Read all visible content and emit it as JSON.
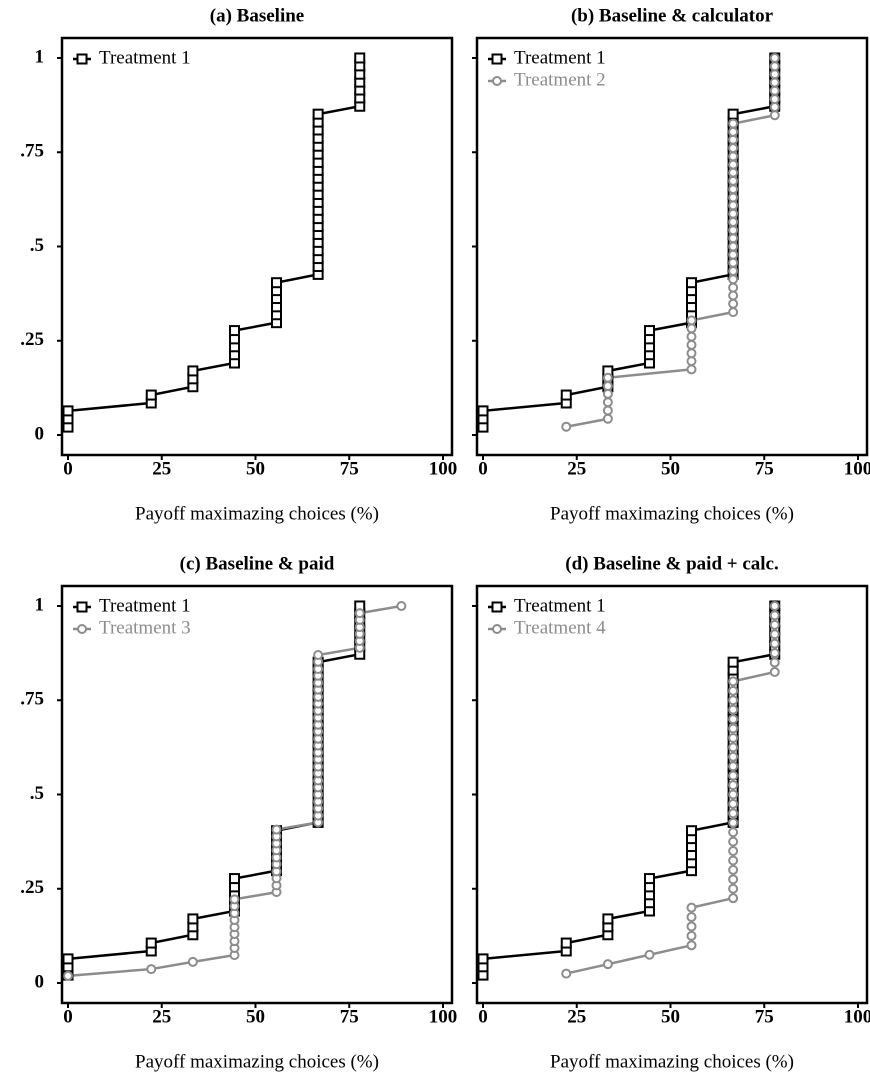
{
  "chart_data": [
    {
      "type": "line",
      "title": "(a) Baseline",
      "x_label": "Payoff maximazing choices (%)",
      "xlim": [
        -1.6,
        102.4
      ],
      "ylim": [
        -0.053,
        1.053
      ],
      "xticks": [
        0,
        25,
        50,
        75,
        100
      ],
      "yticks": [
        0,
        {
          "value": 0.25,
          "label": ".25"
        },
        {
          "value": 0.5,
          "label": ".5"
        },
        {
          "value": 0.75,
          "label": ".75"
        },
        1
      ],
      "show_ytick_labels": true,
      "legend": "upper left",
      "series": [
        {
          "name": "Treatment 1",
          "color": "#000000",
          "marker": "square",
          "x": [
            0,
            0,
            0,
            22.2,
            22.2,
            33.3,
            33.3,
            33.3,
            44.4,
            44.4,
            44.4,
            44.4,
            44.4,
            55.6,
            55.6,
            55.6,
            55.6,
            55.6,
            55.6,
            66.7,
            66.7,
            66.7,
            66.7,
            66.7,
            66.7,
            66.7,
            66.7,
            66.7,
            66.7,
            66.7,
            66.7,
            66.7,
            66.7,
            66.7,
            66.7,
            66.7,
            66.7,
            66.7,
            66.7,
            66.7,
            77.8,
            77.8,
            77.8,
            77.8,
            77.8,
            77.8,
            77.8
          ],
          "values": [
            0.021,
            0.043,
            0.064,
            0.085,
            0.106,
            0.128,
            0.149,
            0.17,
            0.191,
            0.213,
            0.234,
            0.255,
            0.277,
            0.298,
            0.319,
            0.34,
            0.362,
            0.383,
            0.404,
            0.426,
            0.447,
            0.468,
            0.489,
            0.511,
            0.532,
            0.553,
            0.574,
            0.596,
            0.617,
            0.638,
            0.66,
            0.681,
            0.702,
            0.723,
            0.745,
            0.766,
            0.787,
            0.809,
            0.83,
            0.851,
            0.872,
            0.894,
            0.915,
            0.936,
            0.957,
            0.979,
            1
          ]
        }
      ]
    },
    {
      "type": "line",
      "title": "(b) Baseline & calculator",
      "x_label": "Payoff maximazing choices (%)",
      "xlim": [
        -1.6,
        102.4
      ],
      "ylim": [
        -0.053,
        1.053
      ],
      "xticks": [
        0,
        25,
        50,
        75,
        100
      ],
      "yticks": [
        0,
        0.25,
        0.5,
        0.75,
        1
      ],
      "show_ytick_labels": false,
      "legend": "upper left",
      "series": [
        {
          "name": "Treatment 1",
          "color": "#000000",
          "marker": "square",
          "x": [
            0,
            0,
            0,
            22.2,
            22.2,
            33.3,
            33.3,
            33.3,
            44.4,
            44.4,
            44.4,
            44.4,
            44.4,
            55.6,
            55.6,
            55.6,
            55.6,
            55.6,
            55.6,
            66.7,
            66.7,
            66.7,
            66.7,
            66.7,
            66.7,
            66.7,
            66.7,
            66.7,
            66.7,
            66.7,
            66.7,
            66.7,
            66.7,
            66.7,
            66.7,
            66.7,
            66.7,
            66.7,
            66.7,
            66.7,
            77.8,
            77.8,
            77.8,
            77.8,
            77.8,
            77.8,
            77.8
          ],
          "values": [
            0.021,
            0.043,
            0.064,
            0.085,
            0.106,
            0.128,
            0.149,
            0.17,
            0.191,
            0.213,
            0.234,
            0.255,
            0.277,
            0.298,
            0.319,
            0.34,
            0.362,
            0.383,
            0.404,
            0.426,
            0.447,
            0.468,
            0.489,
            0.511,
            0.532,
            0.553,
            0.574,
            0.596,
            0.617,
            0.638,
            0.66,
            0.681,
            0.702,
            0.723,
            0.745,
            0.766,
            0.787,
            0.809,
            0.83,
            0.851,
            0.872,
            0.894,
            0.915,
            0.936,
            0.957,
            0.979,
            1
          ]
        },
        {
          "name": "Treatment 2",
          "color": "#8c8c8c",
          "marker": "circle",
          "x": [
            22.2,
            33.3,
            33.3,
            33.3,
            33.3,
            33.3,
            33.3,
            55.6,
            55.6,
            55.6,
            55.6,
            55.6,
            55.6,
            55.6,
            66.7,
            66.7,
            66.7,
            66.7,
            66.7,
            66.7,
            66.7,
            66.7,
            66.7,
            66.7,
            66.7,
            66.7,
            66.7,
            66.7,
            66.7,
            66.7,
            66.7,
            66.7,
            66.7,
            66.7,
            66.7,
            66.7,
            66.7,
            66.7,
            77.8,
            77.8,
            77.8,
            77.8,
            77.8,
            77.8,
            77.8,
            77.8
          ],
          "values": [
            0.022,
            0.043,
            0.065,
            0.087,
            0.109,
            0.13,
            0.152,
            0.174,
            0.196,
            0.217,
            0.239,
            0.261,
            0.283,
            0.304,
            0.326,
            0.348,
            0.37,
            0.391,
            0.413,
            0.435,
            0.457,
            0.478,
            0.5,
            0.522,
            0.543,
            0.565,
            0.587,
            0.609,
            0.63,
            0.652,
            0.674,
            0.696,
            0.717,
            0.739,
            0.761,
            0.783,
            0.804,
            0.826,
            0.848,
            0.87,
            0.891,
            0.913,
            0.935,
            0.957,
            0.978,
            1
          ]
        }
      ]
    },
    {
      "type": "line",
      "title": "(c) Baseline & paid",
      "x_label": "Payoff maximazing choices (%)",
      "xlim": [
        -1.6,
        102.4
      ],
      "ylim": [
        -0.053,
        1.053
      ],
      "xticks": [
        0,
        25,
        50,
        75,
        100
      ],
      "yticks": [
        0,
        {
          "value": 0.25,
          "label": ".25"
        },
        {
          "value": 0.5,
          "label": ".5"
        },
        {
          "value": 0.75,
          "label": ".75"
        },
        1
      ],
      "show_ytick_labels": true,
      "legend": "upper left",
      "series": [
        {
          "name": "Treatment 1",
          "color": "#000000",
          "marker": "square",
          "x": [
            0,
            0,
            0,
            22.2,
            22.2,
            33.3,
            33.3,
            33.3,
            44.4,
            44.4,
            44.4,
            44.4,
            44.4,
            55.6,
            55.6,
            55.6,
            55.6,
            55.6,
            55.6,
            66.7,
            66.7,
            66.7,
            66.7,
            66.7,
            66.7,
            66.7,
            66.7,
            66.7,
            66.7,
            66.7,
            66.7,
            66.7,
            66.7,
            66.7,
            66.7,
            66.7,
            66.7,
            66.7,
            66.7,
            66.7,
            77.8,
            77.8,
            77.8,
            77.8,
            77.8,
            77.8,
            77.8
          ],
          "values": [
            0.021,
            0.043,
            0.064,
            0.085,
            0.106,
            0.128,
            0.149,
            0.17,
            0.191,
            0.213,
            0.234,
            0.255,
            0.277,
            0.298,
            0.319,
            0.34,
            0.362,
            0.383,
            0.404,
            0.426,
            0.447,
            0.468,
            0.489,
            0.511,
            0.532,
            0.553,
            0.574,
            0.596,
            0.617,
            0.638,
            0.66,
            0.681,
            0.702,
            0.723,
            0.745,
            0.766,
            0.787,
            0.809,
            0.83,
            0.851,
            0.872,
            0.894,
            0.915,
            0.936,
            0.957,
            0.979,
            1
          ]
        },
        {
          "name": "Treatment 3",
          "color": "#8c8c8c",
          "marker": "circle",
          "x": [
            0,
            22.2,
            33.3,
            44.4,
            44.4,
            44.4,
            44.4,
            44.4,
            44.4,
            44.4,
            44.4,
            44.4,
            55.6,
            55.6,
            55.6,
            55.6,
            55.6,
            55.6,
            55.6,
            55.6,
            55.6,
            55.6,
            66.7,
            66.7,
            66.7,
            66.7,
            66.7,
            66.7,
            66.7,
            66.7,
            66.7,
            66.7,
            66.7,
            66.7,
            66.7,
            66.7,
            66.7,
            66.7,
            66.7,
            66.7,
            66.7,
            66.7,
            66.7,
            66.7,
            66.7,
            66.7,
            66.7,
            77.8,
            77.8,
            77.8,
            77.8,
            77.8,
            77.8,
            88.9
          ],
          "values": [
            0.019,
            0.037,
            0.056,
            0.074,
            0.093,
            0.111,
            0.13,
            0.148,
            0.167,
            0.185,
            0.204,
            0.222,
            0.241,
            0.259,
            0.278,
            0.296,
            0.315,
            0.333,
            0.352,
            0.37,
            0.389,
            0.407,
            0.426,
            0.444,
            0.463,
            0.481,
            0.5,
            0.519,
            0.537,
            0.556,
            0.574,
            0.593,
            0.611,
            0.63,
            0.648,
            0.667,
            0.685,
            0.704,
            0.722,
            0.741,
            0.759,
            0.778,
            0.796,
            0.815,
            0.833,
            0.852,
            0.87,
            0.889,
            0.907,
            0.926,
            0.944,
            0.963,
            0.981,
            1
          ]
        }
      ]
    },
    {
      "type": "line",
      "title": "(d) Baseline & paid + calc.",
      "x_label": "Payoff maximazing choices (%)",
      "xlim": [
        -1.6,
        102.4
      ],
      "ylim": [
        -0.053,
        1.053
      ],
      "xticks": [
        0,
        25,
        50,
        75,
        100
      ],
      "yticks": [
        0,
        0.25,
        0.5,
        0.75,
        1
      ],
      "show_ytick_labels": false,
      "legend": "upper left",
      "series": [
        {
          "name": "Treatment 1",
          "color": "#000000",
          "marker": "square",
          "x": [
            0,
            0,
            0,
            22.2,
            22.2,
            33.3,
            33.3,
            33.3,
            44.4,
            44.4,
            44.4,
            44.4,
            44.4,
            55.6,
            55.6,
            55.6,
            55.6,
            55.6,
            55.6,
            66.7,
            66.7,
            66.7,
            66.7,
            66.7,
            66.7,
            66.7,
            66.7,
            66.7,
            66.7,
            66.7,
            66.7,
            66.7,
            66.7,
            66.7,
            66.7,
            66.7,
            66.7,
            66.7,
            66.7,
            66.7,
            77.8,
            77.8,
            77.8,
            77.8,
            77.8,
            77.8,
            77.8
          ],
          "values": [
            0.021,
            0.043,
            0.064,
            0.085,
            0.106,
            0.128,
            0.149,
            0.17,
            0.191,
            0.213,
            0.234,
            0.255,
            0.277,
            0.298,
            0.319,
            0.34,
            0.362,
            0.383,
            0.404,
            0.426,
            0.447,
            0.468,
            0.489,
            0.511,
            0.532,
            0.553,
            0.574,
            0.596,
            0.617,
            0.638,
            0.66,
            0.681,
            0.702,
            0.723,
            0.745,
            0.766,
            0.787,
            0.809,
            0.83,
            0.851,
            0.872,
            0.894,
            0.915,
            0.936,
            0.957,
            0.979,
            1
          ]
        },
        {
          "name": "Treatment 4",
          "color": "#8c8c8c",
          "marker": "circle",
          "x": [
            22.2,
            33.3,
            44.4,
            55.6,
            55.6,
            55.6,
            55.6,
            55.6,
            66.7,
            66.7,
            66.7,
            66.7,
            66.7,
            66.7,
            66.7,
            66.7,
            66.7,
            66.7,
            66.7,
            66.7,
            66.7,
            66.7,
            66.7,
            66.7,
            66.7,
            66.7,
            66.7,
            66.7,
            66.7,
            66.7,
            66.7,
            66.7,
            77.8,
            77.8,
            77.8,
            77.8,
            77.8,
            77.8,
            77.8,
            77.8
          ],
          "values": [
            0.025,
            0.05,
            0.075,
            0.1,
            0.125,
            0.15,
            0.175,
            0.2,
            0.225,
            0.25,
            0.275,
            0.3,
            0.325,
            0.35,
            0.375,
            0.4,
            0.425,
            0.45,
            0.475,
            0.5,
            0.525,
            0.55,
            0.575,
            0.6,
            0.625,
            0.65,
            0.675,
            0.7,
            0.725,
            0.75,
            0.775,
            0.8,
            0.825,
            0.85,
            0.875,
            0.9,
            0.925,
            0.95,
            0.975,
            1
          ]
        }
      ]
    }
  ]
}
